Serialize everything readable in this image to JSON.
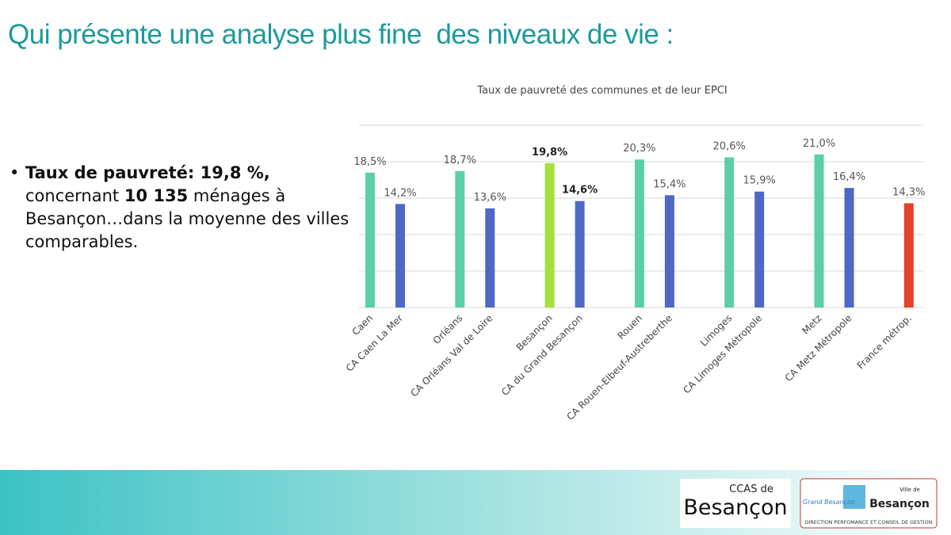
{
  "slide_title": "Qui présente une analyse plus fine  des niveaux de vie :",
  "bullet": [
    {
      "text": "Taux de pauvreté: 19,8 %,",
      "bold": true
    },
    {
      "text": " concernant ",
      "bold": false
    },
    {
      "text": "10 135",
      "bold": true
    },
    {
      "text": " ménages à Besançon…dans la moyenne des villes comparables.",
      "bold": false
    }
  ],
  "chart_data": {
    "type": "bar",
    "title": "Taux de pauvreté des communes et de leur EPCI",
    "categories": [
      "Caen",
      "CA Caen La Mer",
      "Orléans",
      "CA Orléans Val de Loire",
      "Besançon",
      "CA du Grand Besançon",
      "Rouen",
      "CA Rouen-Elbeuf-Austreberthe",
      "Limoges",
      "CA Limoges Métropole",
      "Metz",
      "CA Metz Métropole",
      "France métrop."
    ],
    "values": [
      18.5,
      14.2,
      18.7,
      13.6,
      19.8,
      14.6,
      20.3,
      15.4,
      20.6,
      15.9,
      21.0,
      16.4,
      14.3
    ],
    "value_labels": [
      "18,5%",
      "14,2%",
      "18,7%",
      "13,6%",
      "19,8%",
      "14,6%",
      "20,3%",
      "15,4%",
      "20,6%",
      "15,9%",
      "21,0%",
      "16,4%",
      "14,3%"
    ],
    "colors": [
      "#5ccfa9",
      "#4f68c6",
      "#5ccfa9",
      "#4f68c6",
      "#a5e03e",
      "#4f68c6",
      "#5ccfa9",
      "#4f68c6",
      "#5ccfa9",
      "#4f68c6",
      "#5ccfa9",
      "#4f68c6",
      "#e5402a"
    ],
    "bold_labels": [
      4,
      5
    ],
    "ylim": [
      0,
      25
    ],
    "yticks": [
      0,
      5,
      10,
      15,
      20,
      25
    ],
    "grid": true
  },
  "logos": {
    "ccas_top": "CCAS de",
    "ccas_main": "Besançon",
    "grand_besancon": "Grand Besançon",
    "ville_de": "Ville de",
    "ville_main": "Besançon",
    "direction": "DIRECTION PERFOMANCE ET CONSEIL DE GESTION"
  }
}
